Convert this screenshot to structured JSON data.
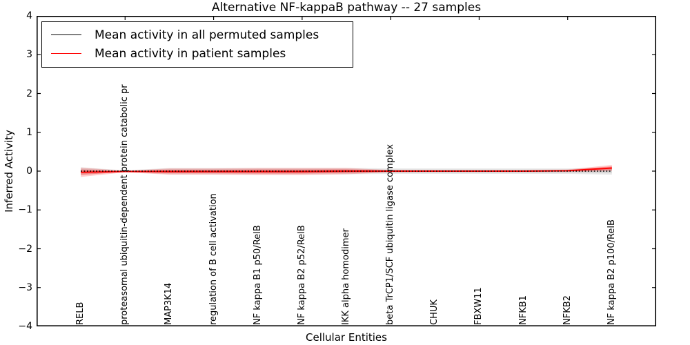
{
  "figure": {
    "title": "Alternative NF-kappaB pathway -- 27 samples",
    "xlabel": "Cellular Entities",
    "ylabel": "Inferred Activity",
    "sample_count": "27"
  },
  "legend": {
    "position": "upper left",
    "entries": [
      {
        "label": "Mean activity in all permuted samples",
        "color": "#000000"
      },
      {
        "label": "Mean activity in patient samples",
        "color": "#ff0000"
      }
    ]
  },
  "chart_data": {
    "type": "line",
    "title": "Alternative NF-kappaB pathway -- 27 samples",
    "xlabel": "Cellular Entities",
    "ylabel": "Inferred Activity",
    "ylim": [
      -4,
      4
    ],
    "yticks": [
      -4,
      -3,
      -2,
      -1,
      0,
      1,
      2,
      3,
      4
    ],
    "grid": false,
    "legend_position": "upper left",
    "x_tick_indices": [
      1,
      3,
      5,
      7,
      9,
      11
    ],
    "categories": [
      "RELB",
      "proteasomal ubiquitin-dependent protein catabolic pr",
      "MAP3K14",
      "regulation of B cell activation",
      "NF kappa B1 p50/RelB",
      "NF kappa B2 p52/RelB",
      "IKK alpha homodimer",
      "beta TrCP1/SCF ubiquitin ligase complex",
      "CHUK",
      "FBXW11",
      "NFKB1",
      "NFKB2",
      "NF kappa B2 p100/RelB"
    ],
    "series": [
      {
        "name": "Mean activity in all permuted samples",
        "color": "#000000",
        "line_style": "dotted",
        "values": [
          0,
          0,
          0,
          0,
          0,
          0,
          0,
          0,
          0,
          0,
          0,
          0,
          0
        ],
        "band": [
          0.1,
          0.02,
          0.08,
          0.08,
          0.08,
          0.08,
          0.08,
          0.07,
          0.07,
          0.07,
          0.07,
          0.07,
          0.09
        ],
        "band_opacity_outer": 0.09,
        "band_opacity_inner": 0.08
      },
      {
        "name": "Mean activity in patient samples",
        "color": "#ff0000",
        "line_style": "solid",
        "values": [
          -0.03,
          -0.01,
          -0.01,
          -0.01,
          -0.01,
          -0.01,
          0,
          0,
          0,
          0,
          0,
          0.01,
          0.08
        ],
        "band": [
          0.12,
          0.02,
          0.08,
          0.08,
          0.09,
          0.09,
          0.08,
          0.03,
          0.02,
          0.02,
          0.02,
          0.03,
          0.08
        ],
        "band_opacity_outer": 0.2,
        "band_opacity_inner": 0.26
      }
    ]
  }
}
